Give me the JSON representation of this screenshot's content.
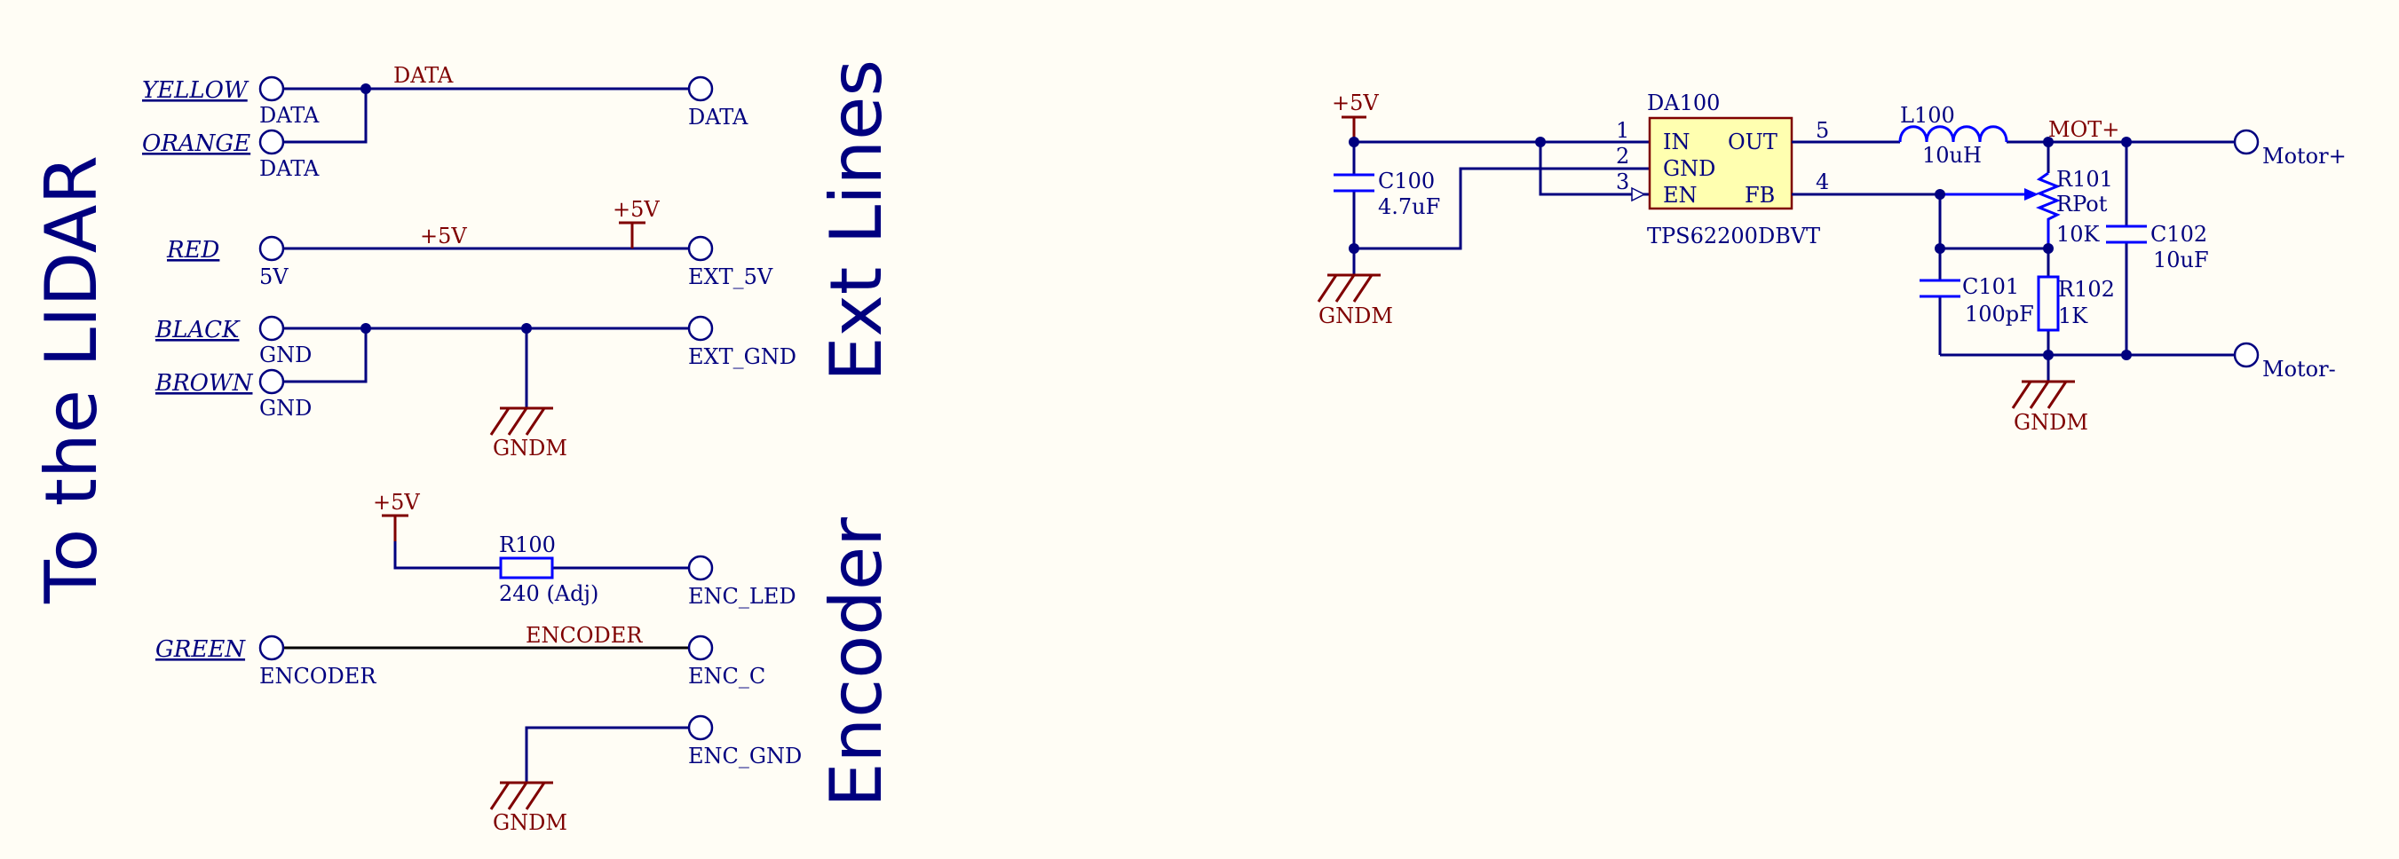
{
  "left": {
    "title_lidar": "To the LIDAR",
    "title_ext": "Ext Lines",
    "title_encoder": "Encoder",
    "wire_labels": {
      "yellow": "YELLOW",
      "orange": "ORANGE",
      "red": "RED",
      "black": "BLACK",
      "brown": "BROWN",
      "green": "GREEN"
    },
    "pins": {
      "data1": "DATA",
      "data2": "DATA",
      "v5": "5V",
      "gnd1": "GND",
      "gnd2": "GND",
      "encoder": "ENCODER"
    },
    "nets": {
      "data": "DATA",
      "plus5v_wire": "+5V",
      "plus5v_power": "+5V",
      "plus5v_enc": "+5V",
      "encoder": "ENCODER",
      "gndm1": "GNDM",
      "gndm2": "GNDM"
    },
    "ports": {
      "data": "DATA",
      "ext5v": "EXT_5V",
      "extgnd": "EXT_GND",
      "encled": "ENC_LED",
      "encc": "ENC_C",
      "encgnd": "ENC_GND"
    },
    "r100": {
      "ref": "R100",
      "value": "240 (Adj)"
    }
  },
  "right": {
    "plus5v": "+5V",
    "gndm_left": "GNDM",
    "gndm_right": "GNDM",
    "c100": {
      "ref": "C100",
      "value": "4.7uF"
    },
    "ic": {
      "ref": "DA100",
      "part": "TPS62200DBVT",
      "pin_in": "IN",
      "pin_gnd": "GND",
      "pin_en": "EN",
      "pin_out": "OUT",
      "pin_fb": "FB",
      "num1": "1",
      "num2": "2",
      "num3": "3",
      "num4": "4",
      "num5": "5"
    },
    "l100": {
      "ref": "L100",
      "value": "10uH"
    },
    "mot_net": "MOT+",
    "r101": {
      "ref": "R101",
      "value": "RPot",
      "value2": "10K"
    },
    "c101": {
      "ref": "C101",
      "value": "100pF"
    },
    "r102": {
      "ref": "R102",
      "value": "1K"
    },
    "c102": {
      "ref": "C102",
      "value": "10uF"
    },
    "motor_plus": "Motor+",
    "motor_minus": "Motor-"
  }
}
